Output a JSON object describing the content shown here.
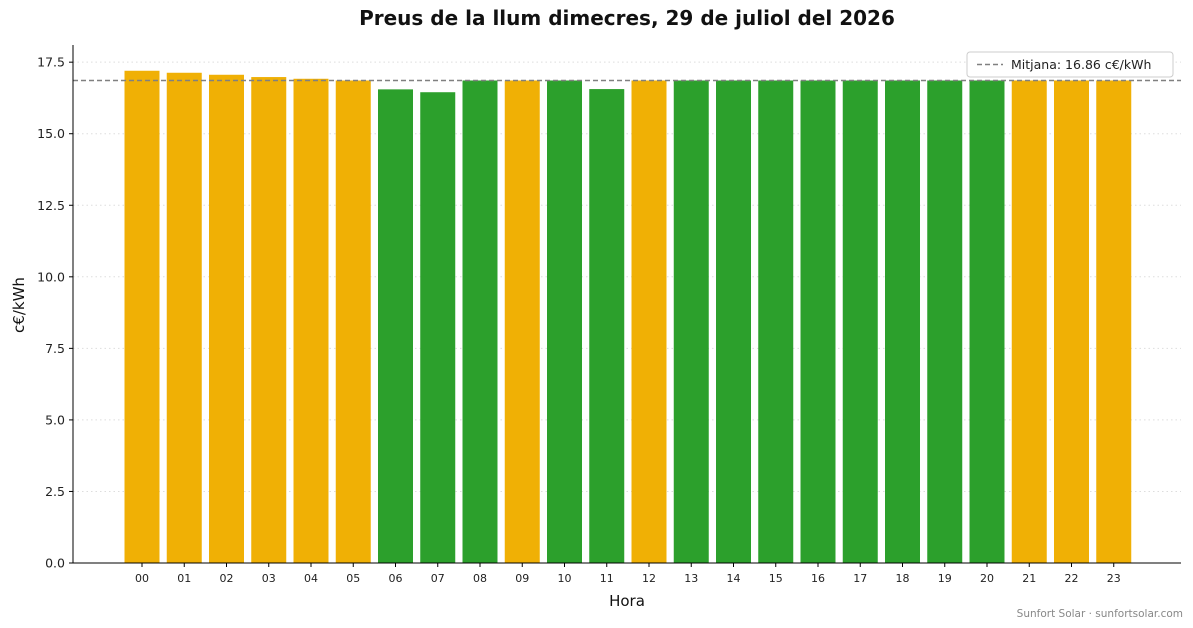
{
  "chart_data": {
    "type": "bar",
    "title": "Preus de la llum dimecres, 29 de juliol del 2026",
    "xlabel": "Hora",
    "ylabel": "c€/kWh",
    "categories": [
      "00",
      "01",
      "02",
      "03",
      "04",
      "05",
      "06",
      "07",
      "08",
      "09",
      "10",
      "11",
      "12",
      "13",
      "14",
      "15",
      "16",
      "17",
      "18",
      "19",
      "20",
      "21",
      "22",
      "23"
    ],
    "values": [
      17.2,
      17.13,
      17.06,
      16.98,
      16.92,
      16.86,
      16.55,
      16.45,
      16.86,
      16.86,
      16.86,
      16.56,
      16.86,
      16.86,
      16.86,
      16.86,
      16.86,
      16.86,
      16.86,
      16.86,
      16.86,
      16.86,
      16.86,
      16.86
    ],
    "bar_colors": [
      "#f0b005",
      "#f0b005",
      "#f0b005",
      "#f0b005",
      "#f0b005",
      "#f0b005",
      "#2ca02c",
      "#2ca02c",
      "#2ca02c",
      "#f0b005",
      "#2ca02c",
      "#2ca02c",
      "#f0b005",
      "#2ca02c",
      "#2ca02c",
      "#2ca02c",
      "#2ca02c",
      "#2ca02c",
      "#2ca02c",
      "#2ca02c",
      "#2ca02c",
      "#f0b005",
      "#f0b005",
      "#f0b005"
    ],
    "ylim": [
      0,
      18.1
    ],
    "yticks": [
      "0.0",
      "2.5",
      "5.0",
      "7.5",
      "10.0",
      "12.5",
      "15.0",
      "17.5"
    ],
    "average": {
      "value": 16.86,
      "label": "Mitjana: 16.86 c€/kWh",
      "color": "#808080",
      "style": "dashed"
    },
    "legend_position": "top-right",
    "grid": "horizontal-dotted"
  },
  "footer": "Sunfort Solar · sunfortsolar.com"
}
